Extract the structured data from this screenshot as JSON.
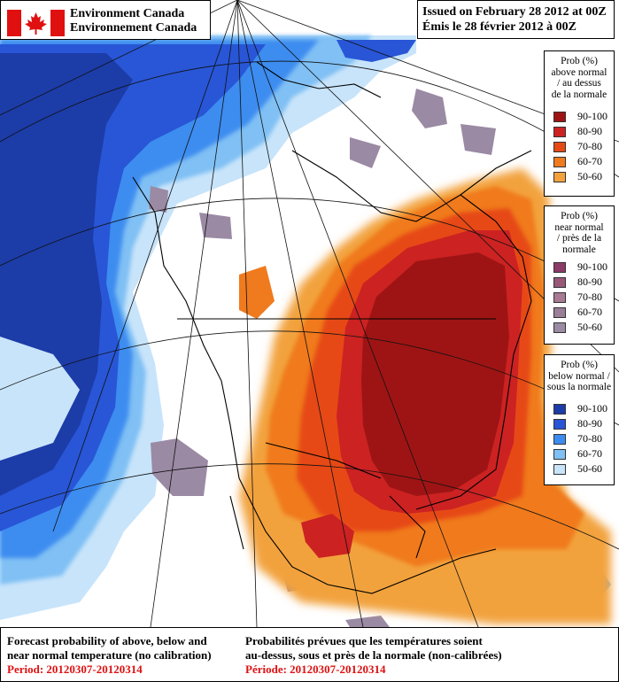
{
  "header": {
    "agency_en": "Environment Canada",
    "agency_fr": "Environnement Canada",
    "issued_en": "Issued on February 28 2012 at 00Z",
    "issued_fr": "Émis le 28 février 2012 à 00Z"
  },
  "legends": [
    {
      "title": [
        "Prob (%)",
        "above normal",
        "/ au dessus",
        "de la normale"
      ],
      "items": [
        {
          "label": "90-100",
          "color": "#9e1414"
        },
        {
          "label": "80-90",
          "color": "#cc2222"
        },
        {
          "label": "70-80",
          "color": "#e64a14"
        },
        {
          "label": "60-70",
          "color": "#f07a1e"
        },
        {
          "label": "50-60",
          "color": "#f2a23c"
        }
      ]
    },
    {
      "title": [
        "Prob (%)",
        "near normal",
        "/ près de la",
        "normale"
      ],
      "items": [
        {
          "label": "90-100",
          "color": "#8a3c66"
        },
        {
          "label": "80-90",
          "color": "#985878"
        },
        {
          "label": "70-80",
          "color": "#a87a94"
        },
        {
          "label": "60-70",
          "color": "#9a7f96"
        },
        {
          "label": "50-60",
          "color": "#9b8aa4"
        }
      ]
    },
    {
      "title": [
        "Prob (%)",
        "below normal /",
        "sous la normale"
      ],
      "items": [
        {
          "label": "90-100",
          "color": "#1c3ca8"
        },
        {
          "label": "80-90",
          "color": "#2856d6"
        },
        {
          "label": "70-80",
          "color": "#3c8cf0"
        },
        {
          "label": "60-70",
          "color": "#80c0f4"
        },
        {
          "label": "50-60",
          "color": "#c8e4fa"
        }
      ]
    }
  ],
  "footer": {
    "en_line1": "Forecast probability of above, below and",
    "en_line2": "near normal temperature (no calibration)",
    "en_period": "Period: 20120307-20120314",
    "fr_line1": "Probabilités prévues que les températures soient",
    "fr_line2": "au-dessus, sous et près de la normale (non-calibrées)",
    "fr_period": "Période: 20120307-20120314"
  }
}
